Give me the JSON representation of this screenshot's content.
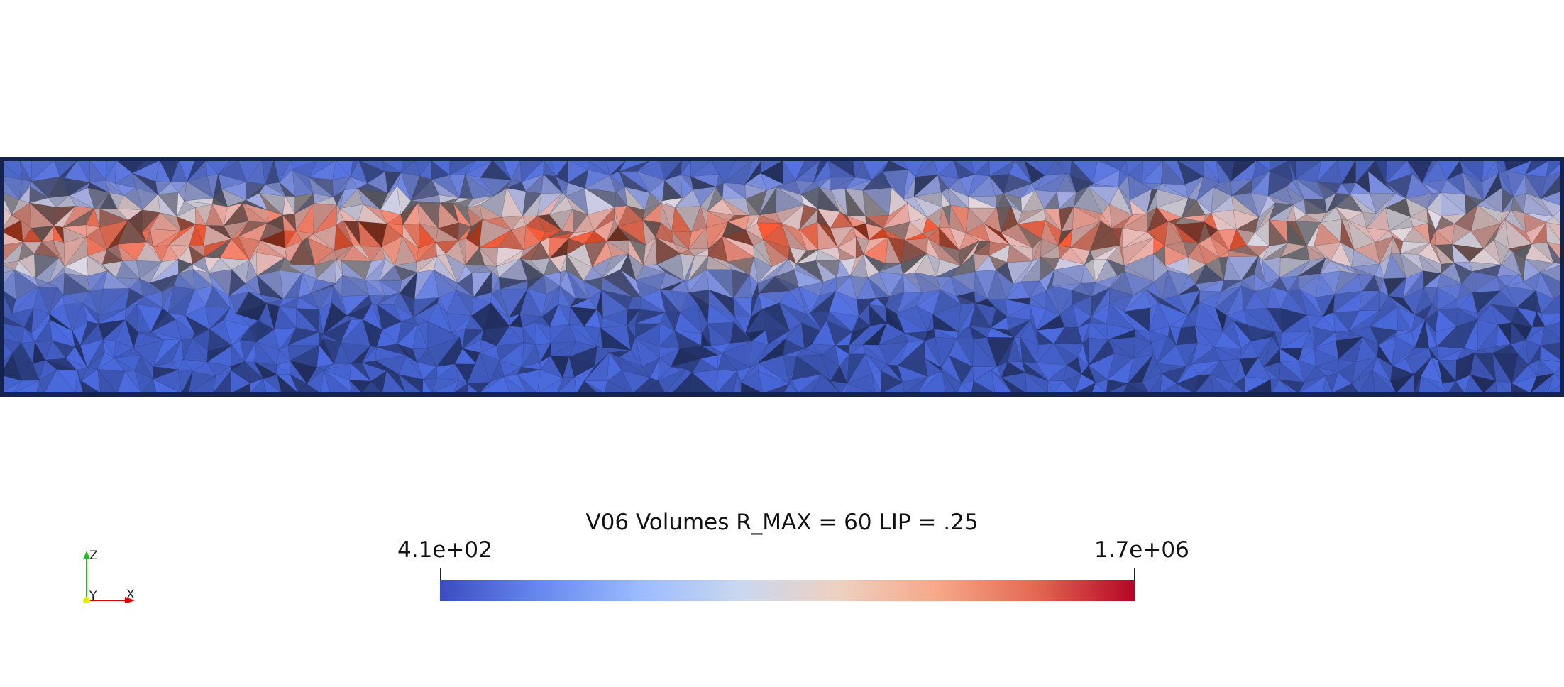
{
  "scalar_bar": {
    "title": "V06 Volumes R_MAX = 60 LIP = .25",
    "min_label": "4.1e+02",
    "max_label": "1.7e+06",
    "min_value": 410,
    "max_value": 1700000,
    "colormap": [
      "#3b4cc0",
      "#6788ee",
      "#9abbff",
      "#c9d7f0",
      "#edd1c2",
      "#f7a889",
      "#e26952",
      "#b40426"
    ]
  },
  "orientation_axes": {
    "x_label": "X",
    "y_label": "Y",
    "z_label": "Z",
    "x_color": "#e00000",
    "y_color": "#e8e800",
    "z_color": "#22bb22"
  },
  "mesh": {
    "outline_color": "#14234d",
    "icon": "tetrahedral-mesh-volume"
  }
}
